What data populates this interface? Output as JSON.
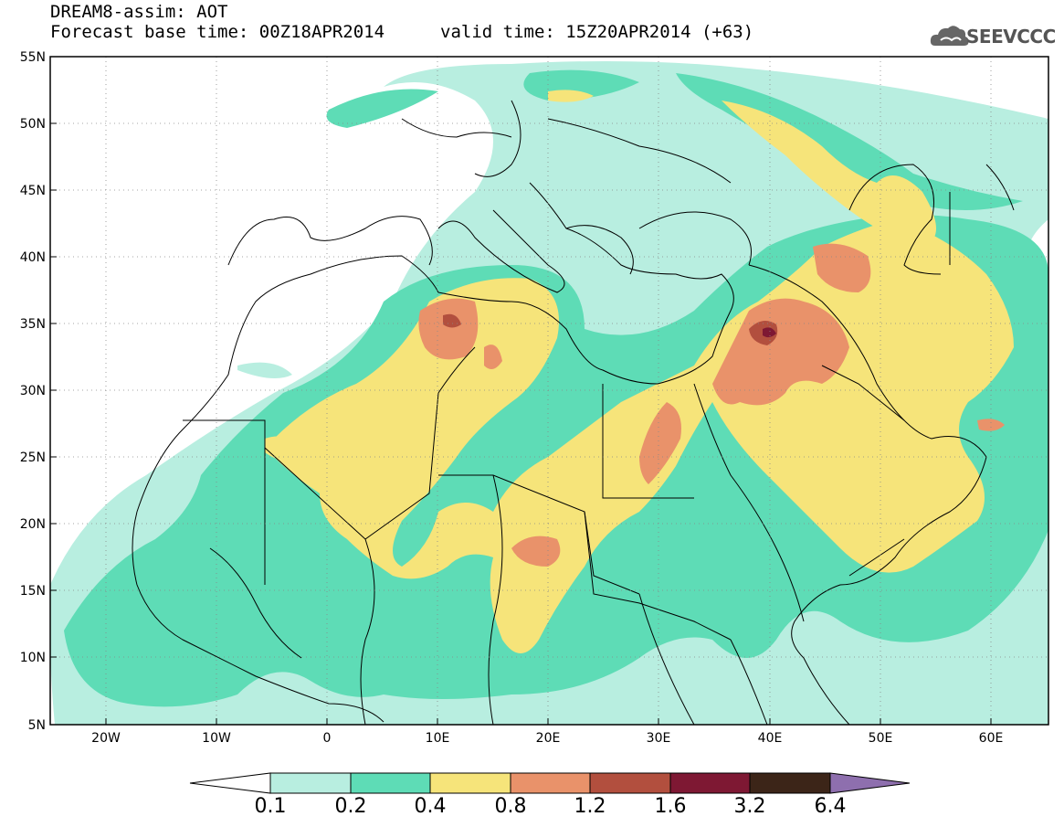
{
  "header": {
    "line1": "DREAM8-assim: AOT",
    "line2": "Forecast base time: 00Z18APR2014",
    "valid": "valid time: 15Z20APR2014 (+63)"
  },
  "logo": {
    "text": "SEEVCCC",
    "icon": "cloud-icon"
  },
  "axes": {
    "lon_ticks": [
      "20W",
      "10W",
      "0",
      "10E",
      "20E",
      "30E",
      "40E",
      "50E",
      "60E"
    ],
    "lat_ticks": [
      "55N",
      "50N",
      "45N",
      "40N",
      "35N",
      "30N",
      "25N",
      "20N",
      "15N",
      "10N",
      "5N"
    ],
    "lon_range": [
      -25,
      65
    ],
    "lat_range": [
      5,
      55
    ],
    "grid": "dotted"
  },
  "legend": {
    "levels": [
      "0.1",
      "0.2",
      "0.4",
      "0.8",
      "1.2",
      "1.6",
      "3.2",
      "6.4"
    ],
    "colors": [
      "#b8eee0",
      "#5edcb6",
      "#f6e47a",
      "#e9926a",
      "#b24f3e",
      "#7e1833",
      "#3c2518",
      "#8e6fae"
    ],
    "under_color": "#ffffff",
    "over_color": "#8e6fae"
  }
}
